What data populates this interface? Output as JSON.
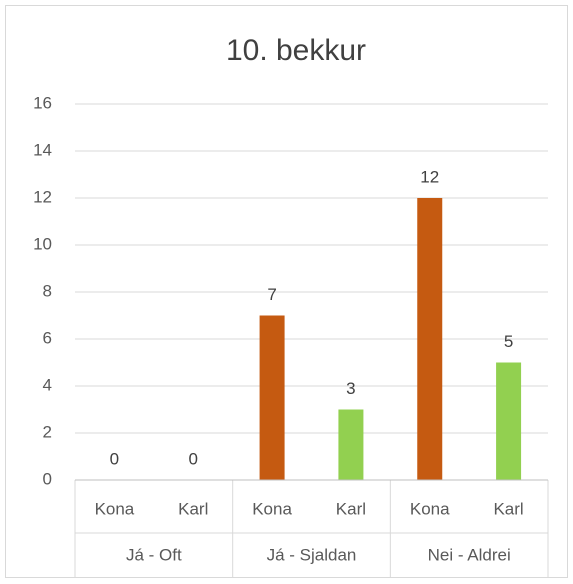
{
  "chart_data": {
    "type": "bar",
    "title": "10. bekkur",
    "groups": [
      {
        "name": "Já - Oft",
        "categories": [
          "Kona",
          "Karl"
        ],
        "values": [
          0,
          0
        ]
      },
      {
        "name": "Já - Sjaldan",
        "categories": [
          "Kona",
          "Karl"
        ],
        "values": [
          7,
          3
        ]
      },
      {
        "name": "Nei - Aldrei",
        "categories": [
          "Kona",
          "Karl"
        ],
        "values": [
          12,
          5
        ]
      }
    ],
    "colors": [
      "#c55a11",
      "#92d050"
    ],
    "ylim": [
      0,
      16
    ],
    "yticks": [
      0,
      2,
      4,
      6,
      8,
      10,
      12,
      14,
      16
    ],
    "grid": true
  }
}
